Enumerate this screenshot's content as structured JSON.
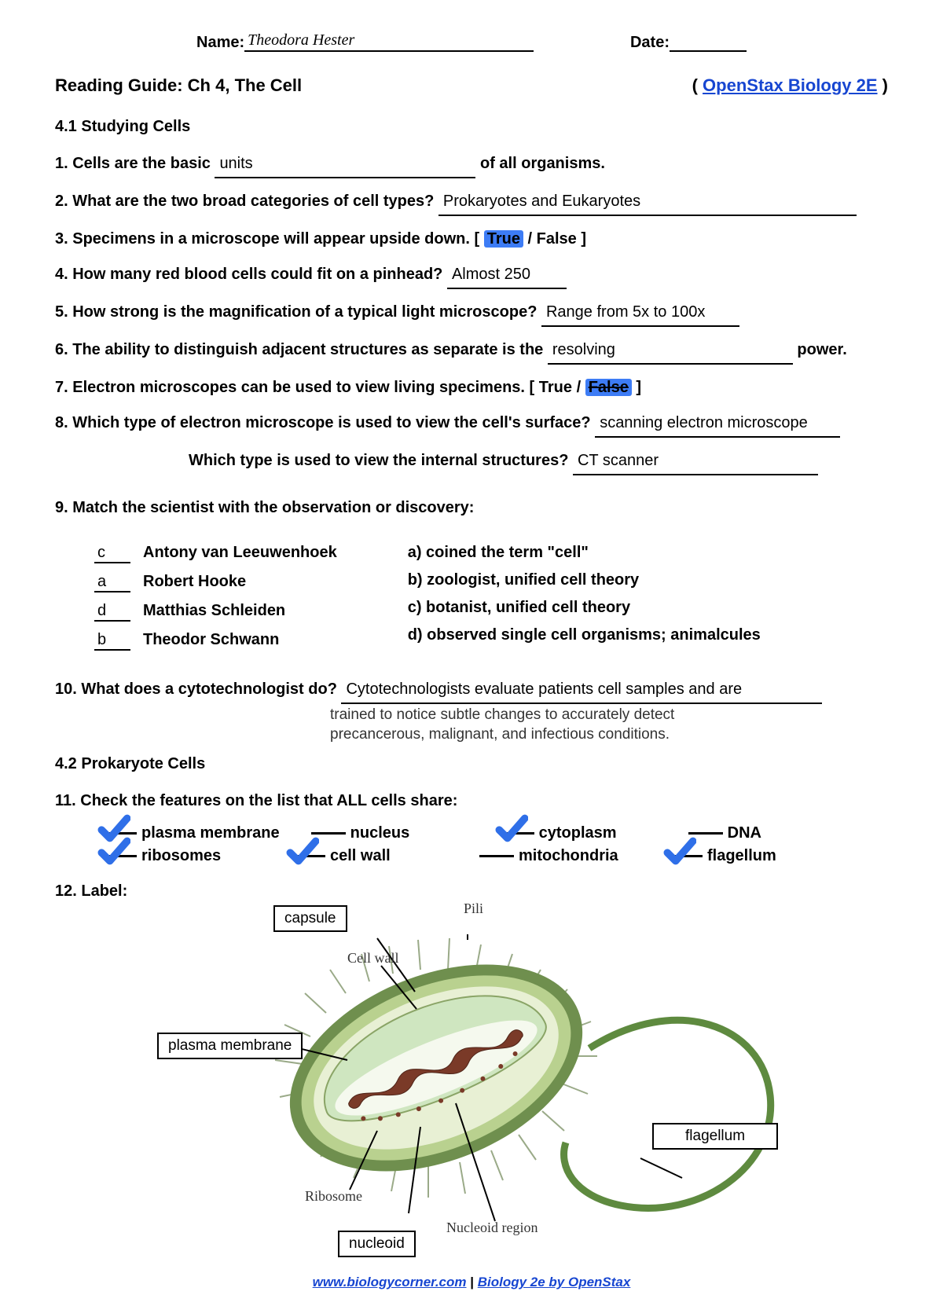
{
  "header": {
    "name_label": "Name:",
    "name_value": "Theodora Hester",
    "date_label": "Date:",
    "date_value": ""
  },
  "title": {
    "main": "Reading Guide: Ch 4, The Cell",
    "link_prefix": "( ",
    "link_text": "OpenStax Biology 2E",
    "link_suffix": " )"
  },
  "section41": "4.1   Studying Cells",
  "q1": {
    "pre": "1.  Cells are the basic ",
    "ans": "units",
    "post": " of all organisms."
  },
  "q2": {
    "pre": "2.  What are the two broad categories of cell types? ",
    "ans": "Prokaryotes and Eukaryotes"
  },
  "q3": {
    "pre": "3.  Specimens in a microscope will appear upside down.   [ ",
    "true": "True",
    "sep": "  /  ",
    "false": "False",
    "post": " ]"
  },
  "q4": {
    "pre": "4.  How many red blood cells could fit on a pinhead? ",
    "ans": "Almost 250"
  },
  "q5": {
    "pre": "5.  How strong is the magnification of a typical light microscope? ",
    "ans": "Range from 5x to 100x"
  },
  "q6": {
    "pre": "6.  The ability to distinguish adjacent structures as separate is the ",
    "ans": "resolving",
    "post": " power."
  },
  "q7": {
    "pre": "7.  Electron microscopes can be used to view living specimens.   [  True ",
    "sep": " / ",
    "false": "False",
    "post": " ]"
  },
  "q8a": {
    "pre": "8.  Which type of electron microscope is used to view the cell's surface? ",
    "ans": "scanning electron microscope"
  },
  "q8b": {
    "pre": "Which type is used to view the internal structures? ",
    "ans": "CT scanner"
  },
  "q9": {
    "prompt": "9.  Match the scientist with the observation or discovery:",
    "left": [
      {
        "letter": "c",
        "name": "Antony van Leeuwenhoek"
      },
      {
        "letter": "a",
        "name": "Robert Hooke"
      },
      {
        "letter": "d",
        "name": "Matthias Schleiden"
      },
      {
        "letter": "b",
        "name": "Theodor Schwann"
      }
    ],
    "right": [
      "a)  coined the term \"cell\"",
      "b)  zoologist, unified cell theory",
      "c)  botanist, unified cell theory",
      "d)  observed single cell organisms; animalcules"
    ]
  },
  "q10": {
    "pre": "10. What does a cytotechnologist do? ",
    "ans": "Cytotechnologists evaluate patients cell samples and are",
    "extra1": "trained to notice subtle changes to accurately detect",
    "extra2": "precancerous, malignant, and infectious conditions."
  },
  "section42": "4.2 Prokaryote Cells",
  "q11": {
    "prompt": "11.  Check the features on the list that ALL cells share:",
    "row1": [
      {
        "label": "plasma membrane",
        "checked": true
      },
      {
        "label": "nucleus",
        "checked": false
      },
      {
        "label": "cytoplasm",
        "checked": true
      },
      {
        "label": "DNA",
        "checked": false
      }
    ],
    "row2": [
      {
        "label": "ribosomes",
        "checked": true
      },
      {
        "label": "cell wall",
        "checked": true
      },
      {
        "label": "mitochondria",
        "checked": false
      },
      {
        "label": "flagellum",
        "checked": true
      }
    ]
  },
  "q12": {
    "prompt": "12.   Label:"
  },
  "diagram": {
    "boxes": {
      "capsule": "capsule",
      "plasma": "plasma membrane",
      "nucleoid": "nucleoid",
      "flagellum": "flagellum"
    },
    "texts": {
      "pili": "Pili",
      "cellwall": "Cell wall",
      "ribosome": "Ribosome",
      "nucleoid_region": "Nucleoid region"
    },
    "colors": {
      "outer": "#6f8f4e",
      "capsule": "#b9d18f",
      "wall": "#e8f0d4",
      "membrane": "#cfe6c0",
      "cyto": "#f5f9ee",
      "dna": "#7a3a28",
      "flagellum": "#5e8a3f",
      "pili": "#a8b89a"
    }
  },
  "footer": {
    "link1": "www.biologycorner.com",
    "sep": "  |  ",
    "link2": "Biology 2e by OpenStax"
  }
}
